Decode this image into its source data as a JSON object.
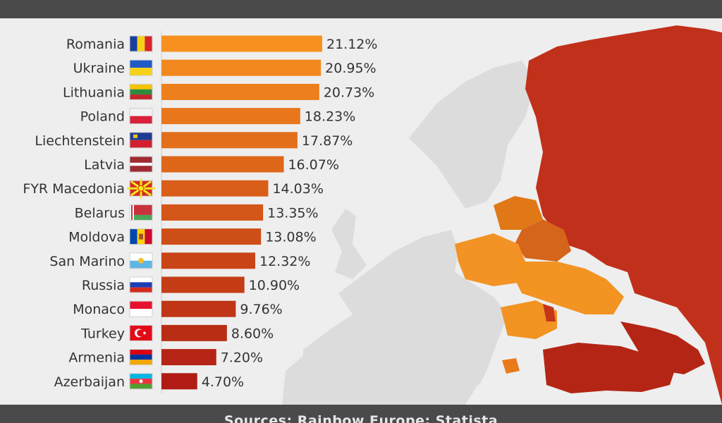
{
  "source": "Sources: Rainbow Europe; Statista",
  "colors": {
    "bar_top": "#f7901e",
    "bar_bottom": "#b01c14",
    "map_ru": "#c1301a",
    "map_tr": "#b42515",
    "map_land": "#dcdcdc",
    "map_sea": "#eeeeee"
  },
  "chart_data": {
    "type": "bar",
    "orientation": "horizontal",
    "categories": [
      "Romania",
      "Ukraine",
      "Lithuania",
      "Poland",
      "Liechtenstein",
      "Latvia",
      "FYR Macedonia",
      "Belarus",
      "Moldova",
      "San Marino",
      "Russia",
      "Monaco",
      "Turkey",
      "Armenia",
      "Azerbaijan"
    ],
    "values": [
      21.12,
      20.95,
      20.73,
      18.23,
      17.87,
      16.07,
      14.03,
      13.35,
      13.08,
      12.32,
      10.9,
      9.76,
      8.6,
      7.2,
      4.7
    ],
    "labels": [
      "21.12%",
      "20.95%",
      "20.73%",
      "18.23%",
      "17.87%",
      "16.07%",
      "14.03%",
      "13.35%",
      "13.08%",
      "12.32%",
      "10.90%",
      "9.76%",
      "8.60%",
      "7.20%",
      "4.70%"
    ],
    "flags": [
      "romania-flag",
      "ukraine-flag",
      "lithuania-flag",
      "poland-flag",
      "liechtenstein-flag",
      "latvia-flag",
      "macedonia-flag",
      "belarus-flag",
      "moldova-flag",
      "san-marino-flag",
      "russia-flag",
      "monaco-flag",
      "turkey-flag",
      "armenia-flag",
      "azerbaijan-flag"
    ],
    "xlim": [
      0,
      21.12
    ]
  }
}
